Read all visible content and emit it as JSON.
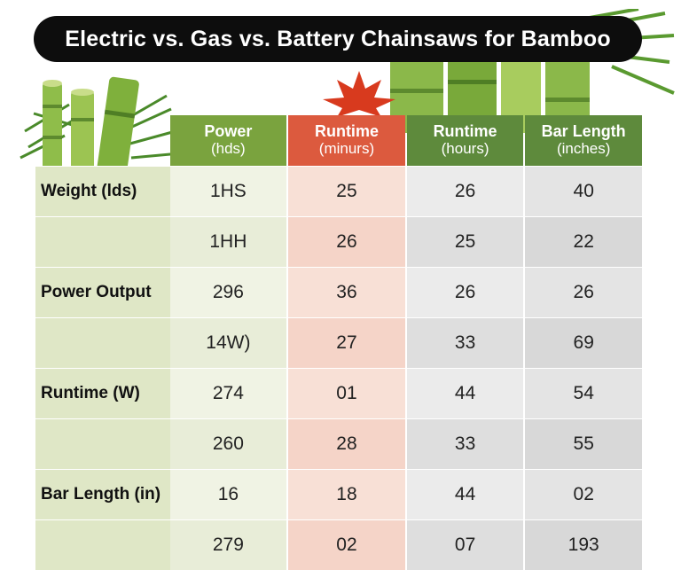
{
  "title": "Electric vs. Gas vs. Battery Chainsaws for Bamboo",
  "columns": [
    {
      "label": "Power",
      "unit": "(hds)"
    },
    {
      "label": "Runtime",
      "unit": "(minurs)"
    },
    {
      "label": "Runtime",
      "unit": "(hours)"
    },
    {
      "label": "Bar Length",
      "unit": "(inches)"
    }
  ],
  "rows": [
    {
      "label": "Weight (lds)",
      "values": [
        "1HS",
        "25",
        "26",
        "40"
      ]
    },
    {
      "label": "",
      "values": [
        "1HH",
        "26",
        "25",
        "22"
      ]
    },
    {
      "label": "Power Output",
      "values": [
        "296",
        "36",
        "26",
        "26"
      ]
    },
    {
      "label": "",
      "values": [
        "14W)",
        "27",
        "33",
        "69"
      ]
    },
    {
      "label": "Runtime (W)",
      "values": [
        "274",
        "01",
        "44",
        "54"
      ]
    },
    {
      "label": "",
      "values": [
        "260",
        "28",
        "33",
        "55"
      ]
    },
    {
      "label": "Bar Length (in)",
      "values": [
        "16",
        "18",
        "44",
        "02"
      ]
    },
    {
      "label": "",
      "values": [
        "279",
        "02",
        "07",
        "193"
      ]
    }
  ],
  "colors": {
    "power_header": "#7aa33e",
    "runtime_minutes_header": "#dc5a3e",
    "runtime_hours_header": "#5e8a3c",
    "bar_length_header": "#5e8a3c",
    "row_label_bg": "#dfe7c6",
    "title_bg": "#0d0d0d"
  },
  "decorations": [
    "bamboo-stalks-left",
    "bamboo-stalks-right",
    "red-maple-leaf"
  ]
}
